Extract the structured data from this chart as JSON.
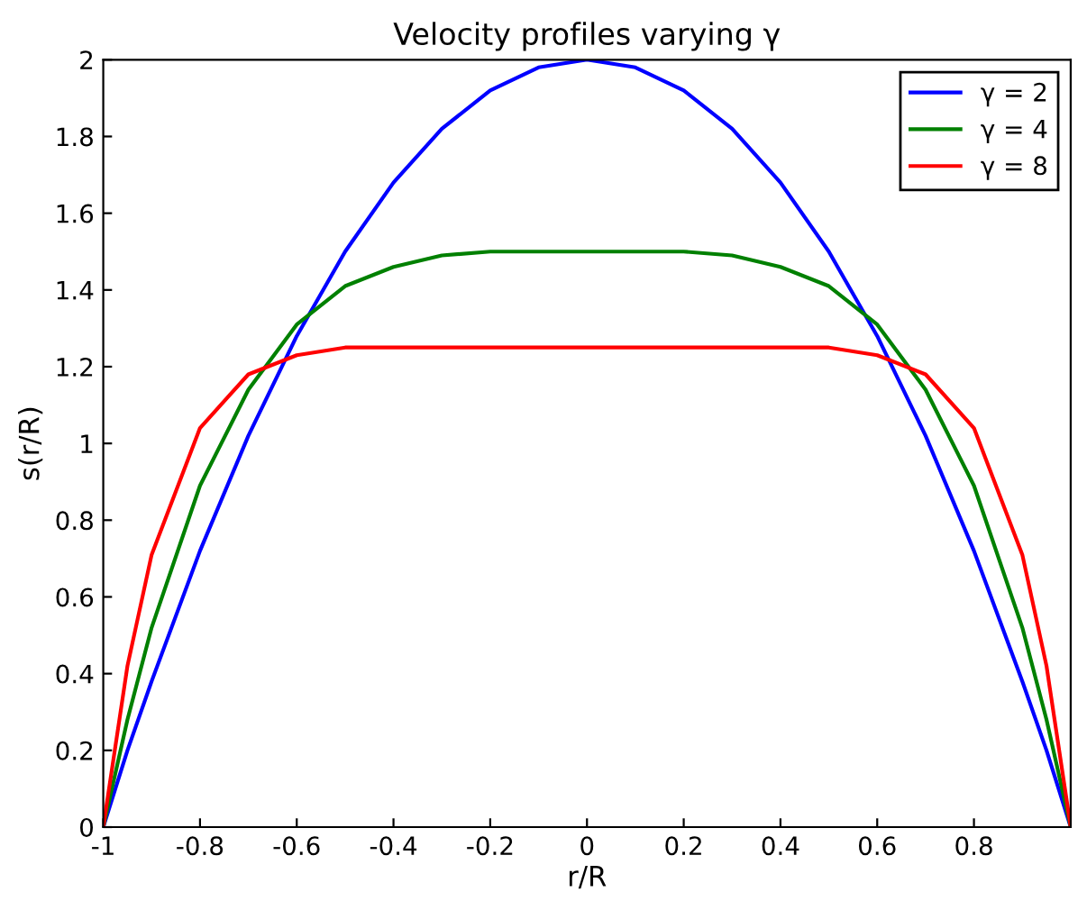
{
  "chart_data": {
    "type": "line",
    "title": "Velocity profiles varying γ",
    "xlabel": "r/R",
    "ylabel": "s(r/R)",
    "x": [
      -1,
      -0.95,
      -0.9,
      -0.8,
      -0.7,
      -0.6,
      -0.5,
      -0.4,
      -0.3,
      -0.2,
      -0.1,
      0,
      0.1,
      0.2,
      0.3,
      0.4,
      0.5,
      0.6,
      0.7,
      0.8,
      0.9,
      0.95,
      1
    ],
    "series": [
      {
        "name": "γ = 2",
        "color": "#0000ff",
        "values": [
          0,
          0.2,
          0.38,
          0.72,
          1.02,
          1.28,
          1.5,
          1.68,
          1.82,
          1.92,
          1.98,
          2,
          1.98,
          1.92,
          1.82,
          1.68,
          1.5,
          1.28,
          1.02,
          0.72,
          0.38,
          0.2,
          0
        ]
      },
      {
        "name": "γ = 4",
        "color": "#008000",
        "values": [
          0,
          0.28,
          0.52,
          0.89,
          1.14,
          1.31,
          1.41,
          1.46,
          1.49,
          1.5,
          1.5,
          1.5,
          1.5,
          1.5,
          1.49,
          1.46,
          1.41,
          1.31,
          1.14,
          0.89,
          0.52,
          0.28,
          0
        ]
      },
      {
        "name": "γ = 8",
        "color": "#ff0000",
        "values": [
          0,
          0.42,
          0.71,
          1.04,
          1.18,
          1.23,
          1.25,
          1.25,
          1.25,
          1.25,
          1.25,
          1.25,
          1.25,
          1.25,
          1.25,
          1.25,
          1.25,
          1.23,
          1.18,
          1.04,
          0.71,
          0.42,
          0
        ]
      }
    ],
    "xlim": [
      -1,
      1
    ],
    "xticks": [
      -1,
      -0.8,
      -0.6,
      -0.4,
      -0.2,
      0,
      0.2,
      0.4,
      0.6,
      0.8
    ],
    "ylim": [
      0,
      2
    ],
    "yticks": [
      0,
      0.2,
      0.4,
      0.6,
      0.8,
      1,
      1.2,
      1.4,
      1.6,
      1.8,
      2
    ],
    "grid": false,
    "legend": "top right",
    "marker": "none",
    "line_style": "solid"
  }
}
